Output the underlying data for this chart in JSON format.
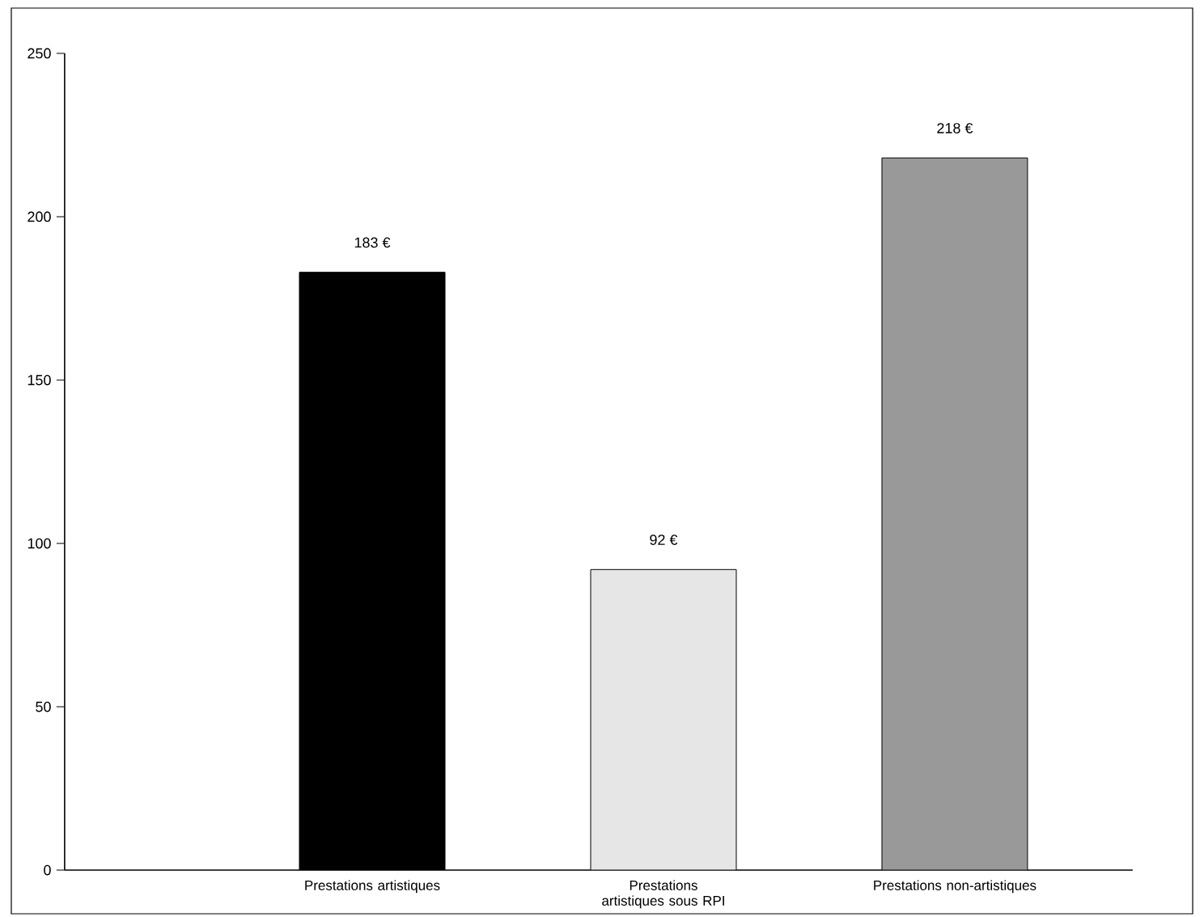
{
  "chart_data": {
    "type": "bar",
    "categories": [
      "Prestations artistiques",
      "Prestations artistiques sous RPI",
      "Prestations non-artistiques"
    ],
    "values": [
      183,
      92,
      218
    ],
    "colors": [
      "#000000",
      "#e6e6e6",
      "#999999"
    ],
    "value_labels": [
      "183 €",
      "92 €",
      "218 €"
    ],
    "ylim": [
      0,
      250
    ],
    "yticks": [
      0,
      50,
      100,
      150,
      200,
      250
    ]
  }
}
